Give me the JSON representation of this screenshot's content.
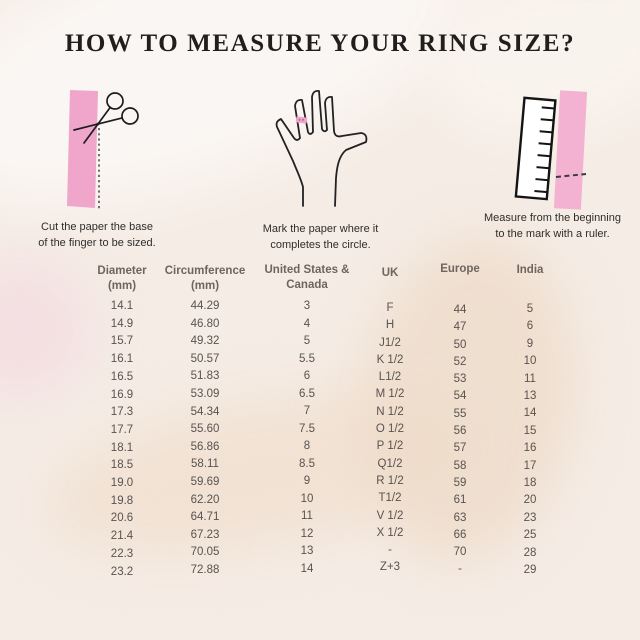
{
  "title": "HOW TO MEASURE YOUR RING SIZE?",
  "steps": [
    {
      "icon": "scissors-paper-strip-illustration",
      "caption": [
        "Cut the paper the base",
        "of the finger to be sized."
      ]
    },
    {
      "icon": "hand-outline-illustration",
      "caption": [
        "Mark the paper where it",
        "completes the circle."
      ]
    },
    {
      "icon": "ruler-paper-strip-illustration",
      "caption": [
        "Measure from the beginning",
        "to the mark with a ruler."
      ]
    }
  ],
  "size_chart": {
    "headers": [
      [
        "Diameter",
        "(mm)"
      ],
      [
        "Circumference",
        "(mm)"
      ],
      [
        "United States &",
        "Canada"
      ],
      [
        "UK"
      ],
      [
        "Europe"
      ],
      [
        "India"
      ]
    ],
    "rows": [
      [
        "14.1",
        "44.29",
        "3",
        "F",
        "44",
        "5"
      ],
      [
        "14.9",
        "46.80",
        "4",
        "H",
        "47",
        "6"
      ],
      [
        "15.7",
        "49.32",
        "5",
        "J1/2",
        "50",
        "9"
      ],
      [
        "16.1",
        "50.57",
        "5.5",
        "K 1/2",
        "52",
        "10"
      ],
      [
        "16.5",
        "51.83",
        "6",
        "L1/2",
        "53",
        "11"
      ],
      [
        "16.9",
        "53.09",
        "6.5",
        "M 1/2",
        "54",
        "13"
      ],
      [
        "17.3",
        "54.34",
        "7",
        "N 1/2",
        "55",
        "14"
      ],
      [
        "17.7",
        "55.60",
        "7.5",
        "O 1/2",
        "56",
        "15"
      ],
      [
        "18.1",
        "56.86",
        "8",
        "P 1/2",
        "57",
        "16"
      ],
      [
        "18.5",
        "58.11",
        "8.5",
        "Q1/2",
        "58",
        "17"
      ],
      [
        "19.0",
        "59.69",
        "9",
        "R 1/2",
        "59",
        "18"
      ],
      [
        "19.8",
        "62.20",
        "10",
        "T1/2",
        "61",
        "20"
      ],
      [
        "20.6",
        "64.71",
        "11",
        "V 1/2",
        "63",
        "23"
      ],
      [
        "21.4",
        "67.23",
        "12",
        "X 1/2",
        "66",
        "25"
      ],
      [
        "22.3",
        "70.05",
        "13",
        "-",
        "70",
        "28"
      ],
      [
        "23.2",
        "72.88",
        "14",
        "Z+3",
        "-",
        "29"
      ]
    ]
  },
  "colors": {
    "background": "#f5ece5",
    "pink": "#f0a6cb",
    "pink_light": "#f4b2d2",
    "title": "#201f1d",
    "caption": "#2f2d2a",
    "header": "#6e655e",
    "value": "#585350",
    "ink": "#1d1d1d"
  }
}
